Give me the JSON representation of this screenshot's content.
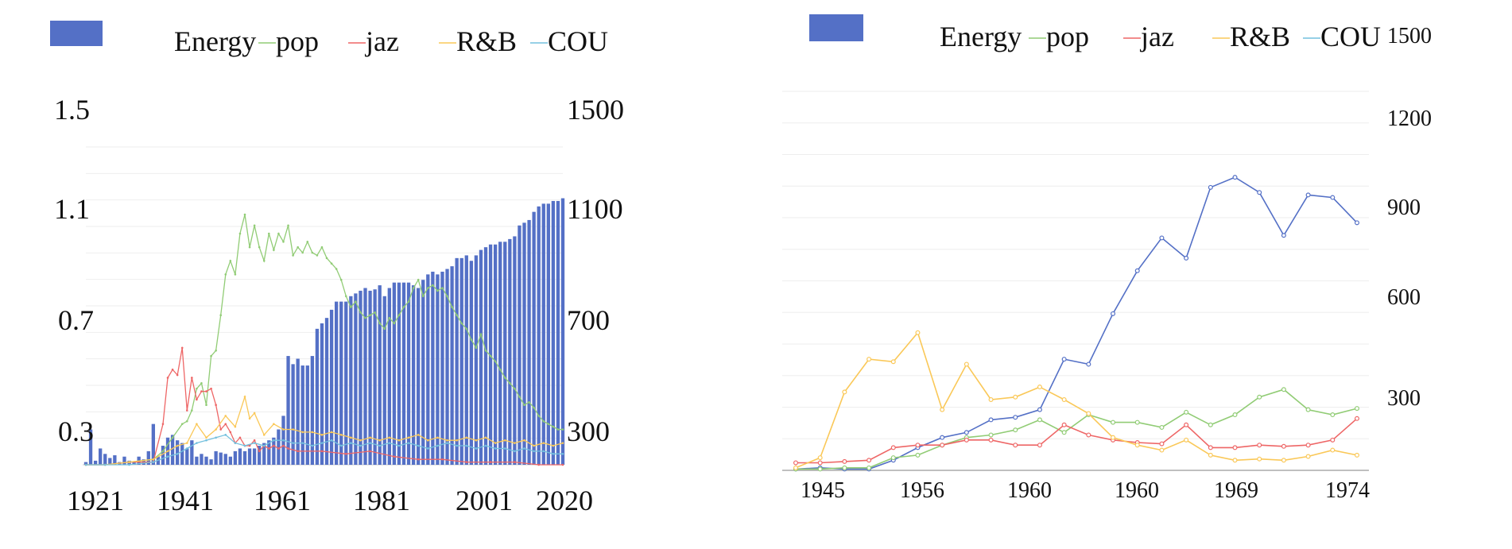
{
  "chart_data": [
    {
      "type": "bar",
      "legend": [
        "Energy",
        "pop",
        "jaz",
        "R&B",
        "COU"
      ],
      "left_axis_ticks": [
        "1.5",
        "1.1",
        "0.7",
        "0.3"
      ],
      "right_axis_ticks": [
        "1500",
        "1100",
        "700",
        "300"
      ],
      "x_ticks": [
        "1921",
        "1941",
        "1961",
        "1981",
        "2001",
        "2020"
      ],
      "ylim_left": [
        0.2,
        1.5
      ],
      "ylim_right": [
        200,
        1500
      ],
      "grid": true,
      "legend_position": "top",
      "bars": {
        "name": "Energy",
        "years": [
          1921,
          1922,
          1923,
          1924,
          1925,
          1926,
          1927,
          1928,
          1929,
          1930,
          1931,
          1932,
          1933,
          1934,
          1935,
          1936,
          1937,
          1938,
          1939,
          1940,
          1941,
          1942,
          1943,
          1944,
          1945,
          1946,
          1947,
          1948,
          1949,
          1950,
          1951,
          1952,
          1953,
          1954,
          1955,
          1956,
          1957,
          1958,
          1959,
          1960,
          1961,
          1962,
          1963,
          1964,
          1965,
          1966,
          1967,
          1968,
          1969,
          1970,
          1971,
          1972,
          1973,
          1974,
          1975,
          1976,
          1977,
          1978,
          1979,
          1980,
          1981,
          1982,
          1983,
          1984,
          1985,
          1986,
          1987,
          1988,
          1989,
          1990,
          1991,
          1992,
          1993,
          1994,
          1995,
          1996,
          1997,
          1998,
          1999,
          2000,
          2001,
          2002,
          2003,
          2004,
          2005,
          2006,
          2007,
          2008,
          2009,
          2010,
          2011,
          2012,
          2013,
          2014,
          2015,
          2016,
          2017,
          2018,
          2019,
          2020
        ],
        "values": [
          210,
          330,
          215,
          260,
          240,
          225,
          235,
          210,
          230,
          215,
          210,
          230,
          220,
          250,
          350,
          230,
          270,
          300,
          310,
          290,
          280,
          260,
          290,
          230,
          240,
          230,
          220,
          250,
          245,
          240,
          230,
          250,
          260,
          250,
          260,
          260,
          270,
          280,
          290,
          300,
          330,
          380,
          600,
          570,
          590,
          565,
          565,
          600,
          700,
          720,
          740,
          770,
          800,
          800,
          800,
          820,
          830,
          840,
          850,
          840,
          845,
          860,
          820,
          850,
          870,
          870,
          870,
          870,
          860,
          850,
          880,
          900,
          910,
          900,
          910,
          920,
          930,
          960,
          960,
          970,
          950,
          970,
          990,
          1000,
          1010,
          1010,
          1020,
          1020,
          1030,
          1040,
          1080,
          1090,
          1100,
          1130,
          1150,
          1160,
          1160,
          1170,
          1170,
          1180
        ]
      },
      "series": [
        {
          "name": "pop",
          "color": "#91cc75",
          "years": [
            1921,
            1925,
            1930,
            1935,
            1937,
            1939,
            1941,
            1942,
            1943,
            1944,
            1945,
            1946,
            1947,
            1948,
            1949,
            1950,
            1951,
            1952,
            1953,
            1954,
            1955,
            1956,
            1957,
            1958,
            1959,
            1960,
            1961,
            1962,
            1963,
            1964,
            1965,
            1966,
            1967,
            1968,
            1969,
            1970,
            1971,
            1972,
            1973,
            1974,
            1975,
            1976,
            1977,
            1978,
            1979,
            1980,
            1981,
            1982,
            1983,
            1984,
            1985,
            1986,
            1987,
            1988,
            1989,
            1990,
            1991,
            1992,
            1993,
            1994,
            1995,
            1996,
            1997,
            1998,
            1999,
            2000,
            2001,
            2002,
            2003,
            2004,
            2005,
            2006,
            2007,
            2008,
            2009,
            2010,
            2011,
            2012,
            2013,
            2014,
            2015,
            2016,
            2017,
            2018,
            2019,
            2020
          ],
          "values": [
            0.2,
            0.2,
            0.21,
            0.22,
            0.25,
            0.3,
            0.35,
            0.36,
            0.4,
            0.48,
            0.5,
            0.42,
            0.6,
            0.62,
            0.75,
            0.9,
            0.95,
            0.9,
            1.05,
            1.12,
            1.0,
            1.08,
            1.0,
            0.95,
            1.05,
            0.99,
            1.05,
            1.02,
            1.08,
            0.97,
            1.0,
            0.98,
            1.02,
            0.98,
            0.97,
            1.0,
            0.96,
            0.94,
            0.92,
            0.88,
            0.82,
            0.78,
            0.8,
            0.76,
            0.74,
            0.75,
            0.76,
            0.72,
            0.7,
            0.74,
            0.72,
            0.75,
            0.78,
            0.8,
            0.85,
            0.88,
            0.82,
            0.85,
            0.86,
            0.84,
            0.85,
            0.82,
            0.78,
            0.75,
            0.72,
            0.7,
            0.66,
            0.63,
            0.68,
            0.62,
            0.6,
            0.58,
            0.55,
            0.52,
            0.5,
            0.48,
            0.45,
            0.42,
            0.43,
            0.41,
            0.38,
            0.36,
            0.35,
            0.34,
            0.33,
            0.33
          ]
        },
        {
          "name": "jaz",
          "color": "#ee6666",
          "years": [
            1921,
            1925,
            1930,
            1935,
            1937,
            1938,
            1939,
            1940,
            1941,
            1942,
            1943,
            1944,
            1945,
            1946,
            1947,
            1948,
            1949,
            1950,
            1951,
            1952,
            1953,
            1954,
            1955,
            1956,
            1957,
            1958,
            1959,
            1960,
            1961,
            1962,
            1963,
            1965,
            1970,
            1975,
            1980,
            1985,
            1990,
            1995,
            2000,
            2005,
            2010,
            2015,
            2020
          ],
          "values": [
            0.2,
            0.2,
            0.21,
            0.21,
            0.35,
            0.52,
            0.55,
            0.53,
            0.63,
            0.4,
            0.52,
            0.44,
            0.47,
            0.47,
            0.48,
            0.42,
            0.33,
            0.35,
            0.32,
            0.28,
            0.3,
            0.27,
            0.27,
            0.29,
            0.25,
            0.27,
            0.26,
            0.27,
            0.26,
            0.27,
            0.26,
            0.25,
            0.25,
            0.24,
            0.25,
            0.23,
            0.22,
            0.22,
            0.21,
            0.21,
            0.21,
            0.2,
            0.2
          ]
        },
        {
          "name": "R&B",
          "color": "#fac858",
          "years": [
            1921,
            1925,
            1930,
            1935,
            1938,
            1940,
            1942,
            1944,
            1946,
            1948,
            1950,
            1952,
            1954,
            1955,
            1956,
            1958,
            1960,
            1962,
            1964,
            1966,
            1968,
            1970,
            1972,
            1974,
            1976,
            1978,
            1980,
            1982,
            1984,
            1986,
            1988,
            1990,
            1992,
            1994,
            1996,
            1998,
            2000,
            2002,
            2004,
            2006,
            2008,
            2010,
            2012,
            2014,
            2016,
            2018,
            2020
          ],
          "values": [
            0.2,
            0.2,
            0.21,
            0.22,
            0.25,
            0.27,
            0.28,
            0.35,
            0.3,
            0.33,
            0.38,
            0.34,
            0.45,
            0.37,
            0.39,
            0.31,
            0.35,
            0.33,
            0.33,
            0.32,
            0.32,
            0.31,
            0.32,
            0.31,
            0.3,
            0.29,
            0.3,
            0.29,
            0.3,
            0.29,
            0.3,
            0.31,
            0.29,
            0.3,
            0.29,
            0.29,
            0.3,
            0.29,
            0.3,
            0.28,
            0.29,
            0.28,
            0.29,
            0.27,
            0.28,
            0.27,
            0.28
          ]
        },
        {
          "name": "COU",
          "color": "#73c0de",
          "years": [
            1921,
            1925,
            1930,
            1935,
            1938,
            1940,
            1942,
            1944,
            1946,
            1948,
            1950,
            1952,
            1954,
            1956,
            1958,
            1960,
            1962,
            1964,
            1966,
            1968,
            1970,
            1972,
            1974,
            1976,
            1978,
            1980,
            1982,
            1984,
            1986,
            1988,
            1990,
            1992,
            1994,
            1996,
            1998,
            2000,
            2002,
            2004,
            2006,
            2008,
            2010,
            2012,
            2014,
            2016,
            2018,
            2020
          ],
          "values": [
            0.2,
            0.2,
            0.2,
            0.21,
            0.23,
            0.24,
            0.26,
            0.28,
            0.29,
            0.3,
            0.31,
            0.28,
            0.27,
            0.28,
            0.27,
            0.29,
            0.29,
            0.28,
            0.28,
            0.27,
            0.28,
            0.29,
            0.27,
            0.28,
            0.27,
            0.28,
            0.27,
            0.28,
            0.27,
            0.28,
            0.27,
            0.26,
            0.27,
            0.28,
            0.27,
            0.27,
            0.26,
            0.27,
            0.26,
            0.26,
            0.25,
            0.26,
            0.25,
            0.25,
            0.24,
            0.24
          ]
        }
      ]
    },
    {
      "type": "line",
      "legend": [
        "Energy",
        "pop",
        "jaz",
        "R&B",
        "COU"
      ],
      "right_axis_ticks": [
        "1500",
        "1200",
        "900",
        "600",
        "300"
      ],
      "x_ticks": [
        "1945",
        "1956",
        "1960",
        "1960",
        "1969",
        "1974"
      ],
      "ylim": [
        0,
        1500
      ],
      "grid": true,
      "legend_position": "top",
      "series": [
        {
          "name": "Energy",
          "color": "#5470c6",
          "values": [
            5,
            10,
            5,
            5,
            40,
            90,
            130,
            150,
            200,
            210,
            240,
            440,
            420,
            620,
            790,
            920,
            840,
            1120,
            1160,
            1100,
            930,
            1090,
            1080,
            980
          ]
        },
        {
          "name": "pop",
          "color": "#91cc75",
          "values": [
            5,
            5,
            10,
            10,
            50,
            60,
            100,
            130,
            140,
            160,
            200,
            150,
            220,
            190,
            190,
            170,
            230,
            180,
            220,
            290,
            320,
            240,
            220,
            245
          ]
        },
        {
          "name": "jaz",
          "color": "#ee6666",
          "values": [
            30,
            30,
            35,
            40,
            90,
            100,
            100,
            120,
            120,
            100,
            100,
            180,
            140,
            120,
            110,
            105,
            180,
            90,
            90,
            100,
            95,
            100,
            120,
            205
          ]
        },
        {
          "name": "R&B",
          "color": "#fac858",
          "values": [
            10,
            50,
            310,
            440,
            430,
            545,
            240,
            420,
            280,
            290,
            330,
            280,
            225,
            130,
            100,
            80,
            120,
            60,
            40,
            45,
            40,
            55,
            80,
            60
          ]
        },
        {
          "name": "COU",
          "color": "#73c0de",
          "values": []
        }
      ]
    }
  ]
}
